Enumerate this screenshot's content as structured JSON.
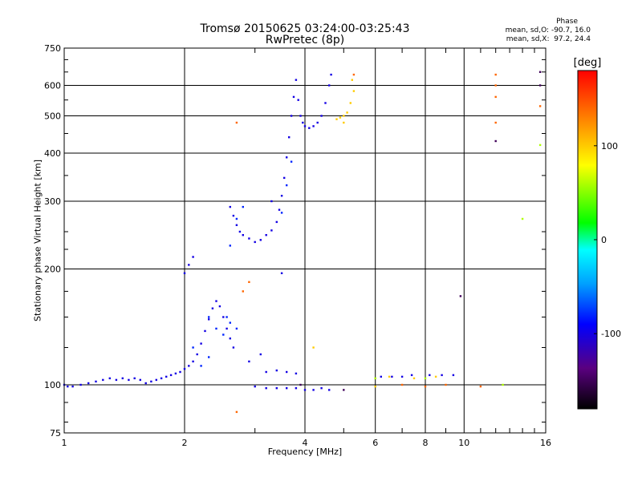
{
  "chart_data": {
    "type": "scatter",
    "title": "Tromsø 20150625 03:24:00-03:25:43",
    "subtitle": "RwPretec (8p)",
    "xlabel": "Frequency [MHz]",
    "ylabel": "Stationary phase Virtual Height [km]",
    "x_scale": "log",
    "y_scale": "log",
    "xlim": [
      1,
      16
    ],
    "ylim": [
      75,
      750
    ],
    "x_ticks": [
      1,
      2,
      4,
      6,
      8,
      10,
      16
    ],
    "y_ticks": [
      75,
      100,
      200,
      300,
      400,
      500,
      600,
      750
    ],
    "grid": true,
    "phase_stats": {
      "heading": "Phase",
      "o_line": "mean, sd,O: -90.7, 16.0",
      "x_line": "mean, sd,X:  97.2, 24.4"
    },
    "colorbar": {
      "label": "[deg]",
      "ticks": [
        "100",
        "0",
        "-100"
      ],
      "tick_values": [
        100,
        0,
        -100
      ],
      "range": [
        -180,
        180
      ]
    },
    "series": [
      {
        "phase": -100,
        "points": [
          [
            1.0,
            100
          ],
          [
            1.02,
            99
          ],
          [
            1.05,
            99
          ],
          [
            1.1,
            100
          ],
          [
            1.15,
            101
          ],
          [
            1.2,
            102
          ],
          [
            1.25,
            103
          ],
          [
            1.3,
            104
          ],
          [
            1.35,
            103
          ],
          [
            1.4,
            104
          ],
          [
            1.45,
            103
          ],
          [
            1.5,
            104
          ],
          [
            1.55,
            103
          ],
          [
            1.6,
            101
          ],
          [
            1.65,
            102
          ],
          [
            1.7,
            103
          ],
          [
            1.75,
            104
          ],
          [
            1.8,
            105
          ],
          [
            1.85,
            106
          ],
          [
            1.9,
            107
          ],
          [
            1.95,
            108
          ],
          [
            2.0,
            110
          ],
          [
            2.05,
            112
          ],
          [
            2.1,
            115
          ],
          [
            2.15,
            120
          ],
          [
            2.2,
            128
          ],
          [
            2.25,
            138
          ],
          [
            2.3,
            148
          ],
          [
            2.35,
            158
          ],
          [
            2.4,
            165
          ],
          [
            2.45,
            160
          ],
          [
            2.5,
            150
          ],
          [
            2.55,
            140
          ],
          [
            2.6,
            132
          ],
          [
            2.65,
            125
          ],
          [
            2.0,
            195
          ],
          [
            2.05,
            205
          ],
          [
            2.1,
            215
          ],
          [
            2.6,
            290
          ],
          [
            2.65,
            275
          ],
          [
            2.7,
            260
          ],
          [
            2.75,
            250
          ],
          [
            2.8,
            245
          ],
          [
            2.9,
            240
          ],
          [
            3.0,
            235
          ],
          [
            3.1,
            238
          ],
          [
            3.2,
            245
          ],
          [
            3.3,
            252
          ],
          [
            3.4,
            265
          ],
          [
            3.45,
            285
          ],
          [
            3.5,
            310
          ],
          [
            3.55,
            345
          ],
          [
            3.6,
            390
          ],
          [
            3.65,
            440
          ],
          [
            3.7,
            500
          ],
          [
            3.75,
            560
          ],
          [
            3.8,
            620
          ],
          [
            3.85,
            550
          ],
          [
            3.9,
            500
          ],
          [
            3.95,
            480
          ],
          [
            4.0,
            470
          ],
          [
            4.1,
            465
          ],
          [
            4.2,
            470
          ],
          [
            4.3,
            480
          ],
          [
            4.4,
            500
          ],
          [
            4.5,
            540
          ],
          [
            4.6,
            600
          ],
          [
            4.65,
            640
          ],
          [
            3.2,
            108
          ],
          [
            3.4,
            109
          ],
          [
            3.6,
            108
          ],
          [
            3.8,
            107
          ],
          [
            3.0,
            99
          ],
          [
            3.2,
            98
          ],
          [
            3.4,
            98
          ],
          [
            3.6,
            98
          ],
          [
            3.8,
            98
          ],
          [
            4.0,
            97
          ],
          [
            4.2,
            97
          ],
          [
            4.4,
            98
          ],
          [
            4.6,
            97
          ],
          [
            6.2,
            105
          ],
          [
            6.6,
            105
          ],
          [
            7.0,
            105
          ],
          [
            7.4,
            106
          ],
          [
            8.2,
            106
          ],
          [
            8.8,
            106
          ],
          [
            9.4,
            106
          ],
          [
            2.9,
            115
          ],
          [
            3.1,
            120
          ],
          [
            3.3,
            300
          ],
          [
            3.5,
            195
          ]
        ]
      },
      {
        "phase": -80,
        "points": [
          [
            2.3,
            150
          ],
          [
            2.4,
            140
          ],
          [
            2.5,
            135
          ],
          [
            2.55,
            150
          ],
          [
            2.6,
            145
          ],
          [
            2.7,
            140
          ],
          [
            2.6,
            230
          ],
          [
            2.7,
            270
          ],
          [
            2.8,
            290
          ],
          [
            3.5,
            280
          ],
          [
            3.6,
            330
          ],
          [
            3.7,
            380
          ],
          [
            2.2,
            112
          ],
          [
            2.3,
            118
          ],
          [
            2.1,
            125
          ]
        ]
      },
      {
        "phase": 100,
        "points": [
          [
            4.8,
            490
          ],
          [
            4.9,
            495
          ],
          [
            5.0,
            500
          ],
          [
            5.1,
            510
          ],
          [
            5.2,
            540
          ],
          [
            5.3,
            580
          ],
          [
            5.25,
            620
          ],
          [
            5.0,
            480
          ],
          [
            6.5,
            105
          ],
          [
            7.5,
            104
          ],
          [
            8.5,
            105
          ],
          [
            6.0,
            99
          ],
          [
            4.2,
            125
          ]
        ]
      },
      {
        "phase": 140,
        "points": [
          [
            5.3,
            640
          ],
          [
            12.0,
            640
          ],
          [
            12.0,
            600
          ],
          [
            12.0,
            560
          ],
          [
            15.5,
            530
          ],
          [
            12.0,
            480
          ],
          [
            2.7,
            480
          ],
          [
            2.8,
            175
          ],
          [
            2.9,
            185
          ],
          [
            2.7,
            85
          ],
          [
            7.0,
            100
          ],
          [
            8.0,
            99
          ],
          [
            9.0,
            100
          ],
          [
            11.0,
            99
          ]
        ]
      },
      {
        "phase": 60,
        "points": [
          [
            15.5,
            420
          ],
          [
            14.0,
            270
          ],
          [
            12.5,
            100
          ],
          [
            6.0,
            104
          ],
          [
            8.0,
            104
          ]
        ]
      },
      {
        "phase": -150,
        "points": [
          [
            3.9,
            100
          ],
          [
            5.0,
            97
          ],
          [
            9.8,
            170
          ],
          [
            12.0,
            430
          ],
          [
            15.5,
            600
          ],
          [
            15.5,
            650
          ]
        ]
      }
    ]
  }
}
